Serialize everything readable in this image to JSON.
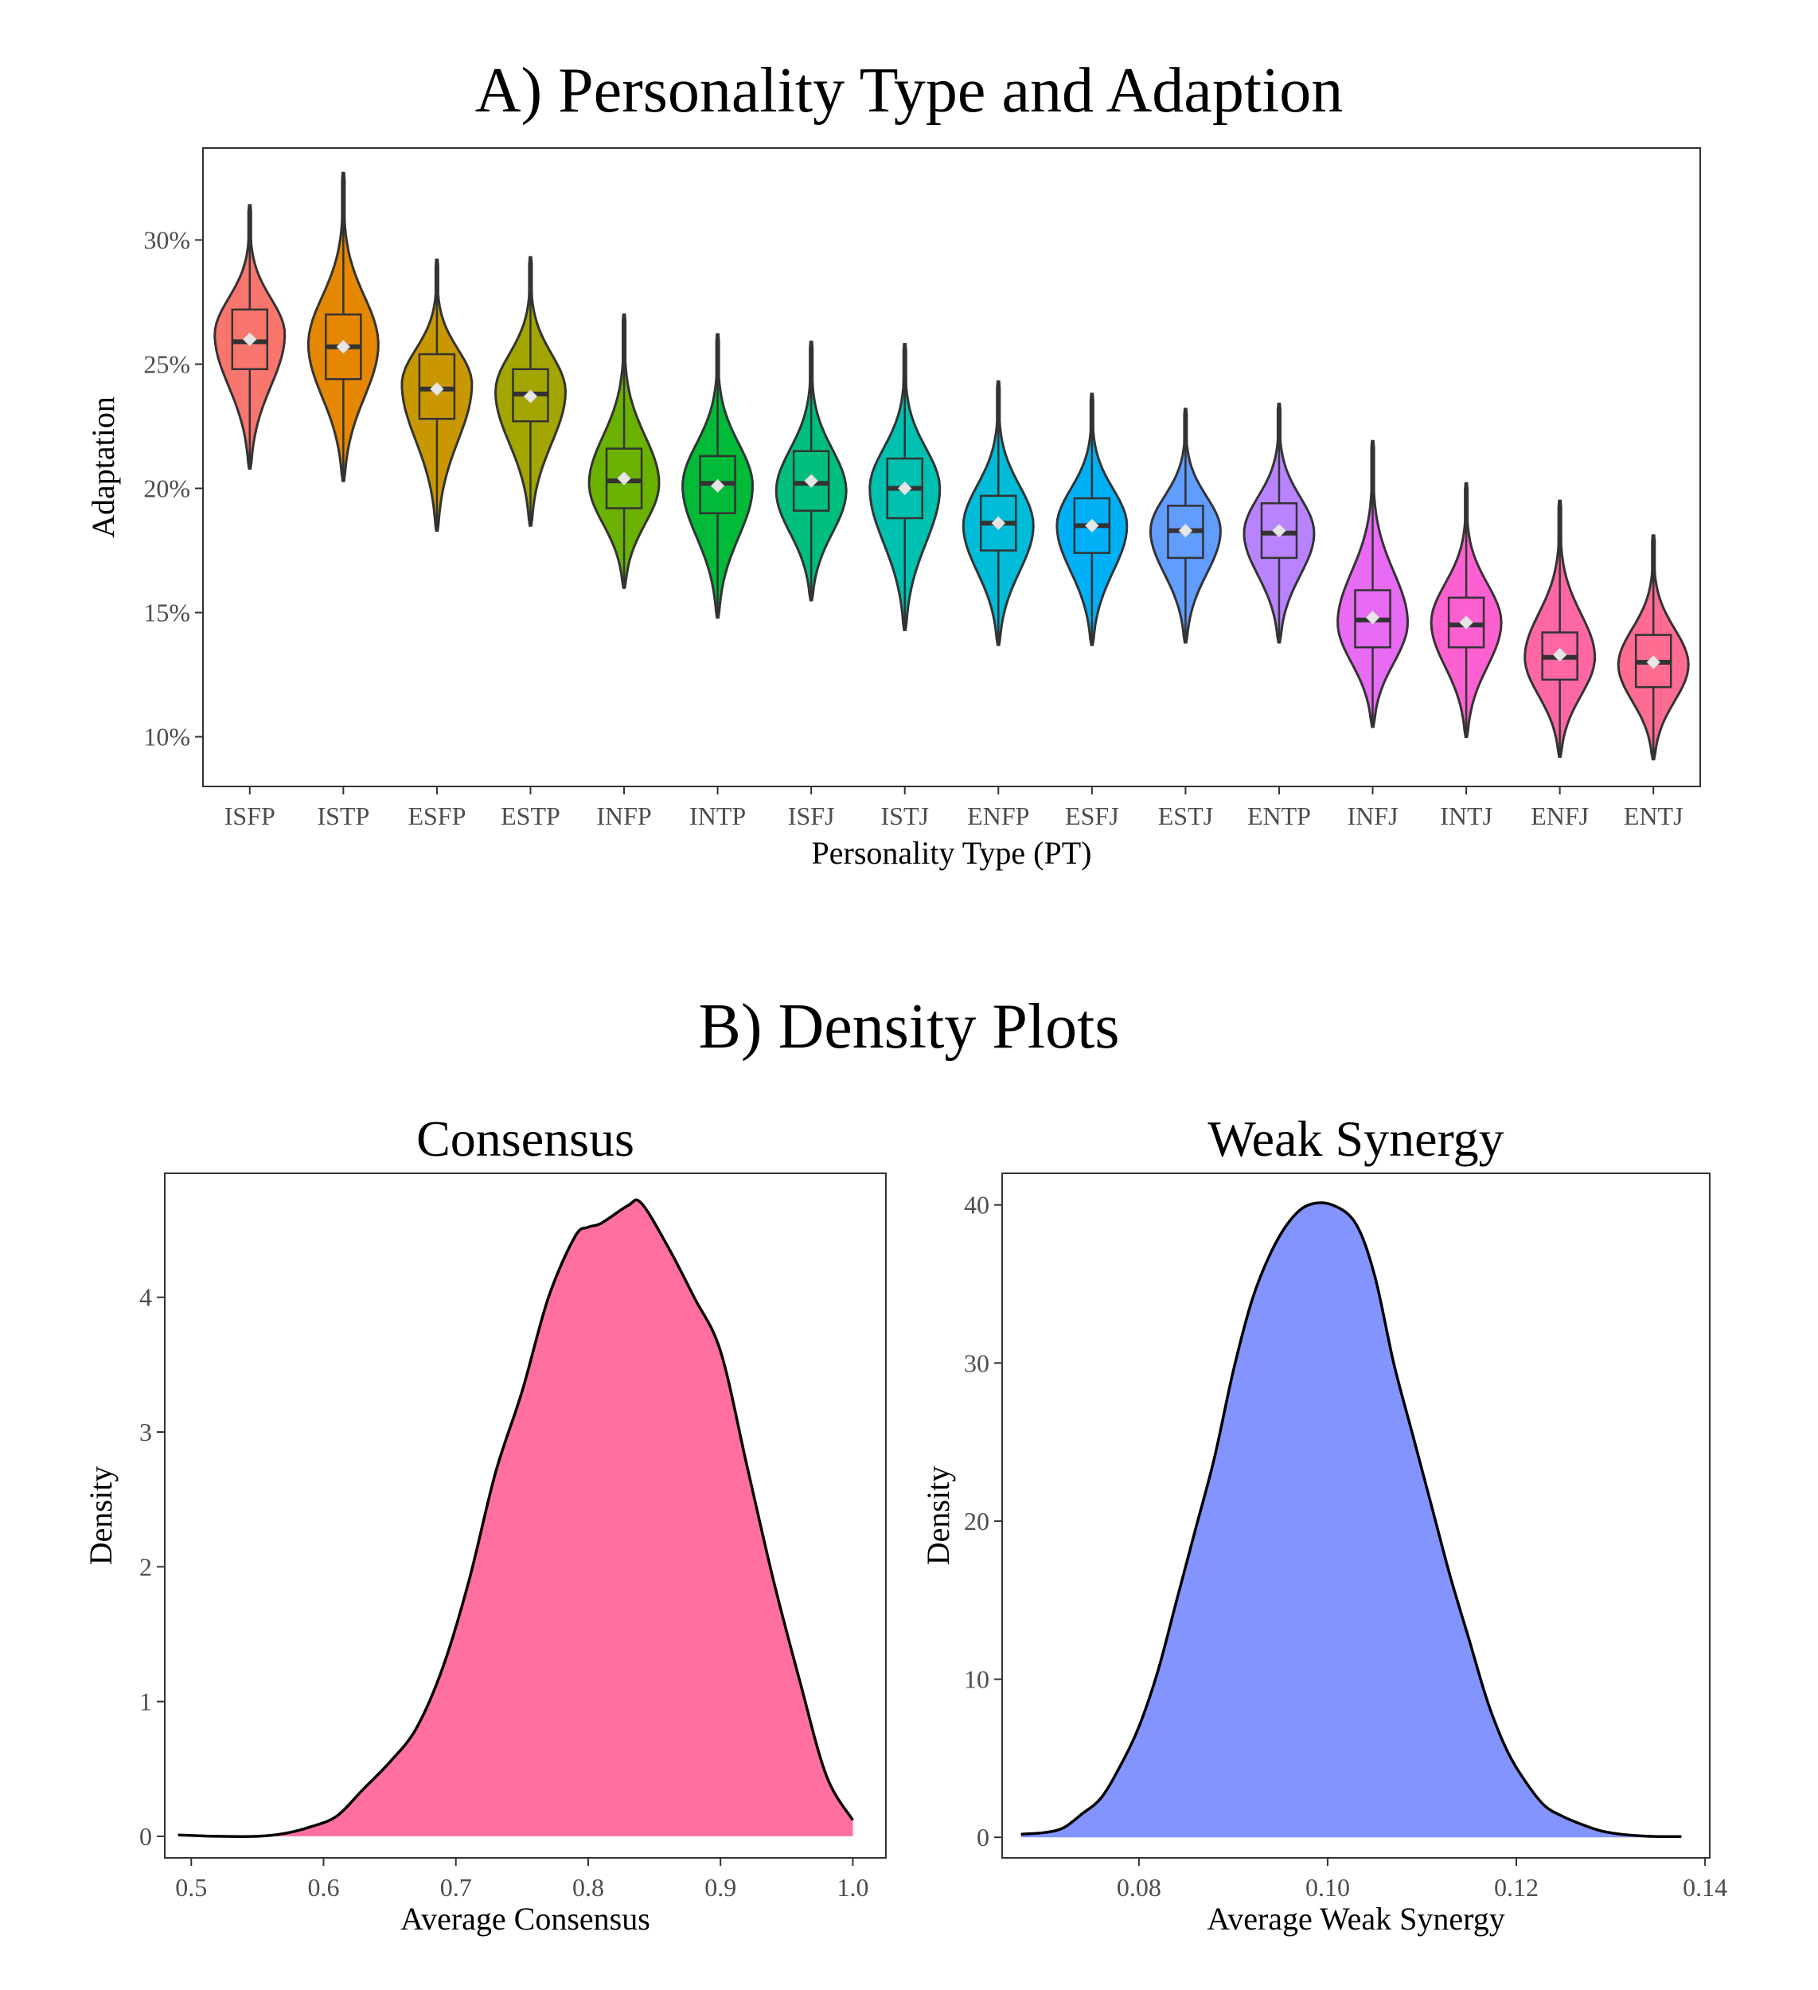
{
  "figure": {
    "panel_a_title": "A) Personality Type and Adaption",
    "panel_b_title": "B) Density Plots"
  },
  "chart_data": [
    {
      "type": "violin",
      "title": "A) Personality Type and Adaption",
      "xlabel": "Personality Type (PT)",
      "ylabel": "Adaptation",
      "ylim": [
        0.08,
        0.337
      ],
      "y_ticks": [
        0.1,
        0.15,
        0.2,
        0.25,
        0.3
      ],
      "y_tick_labels": [
        "10%",
        "15%",
        "20%",
        "25%",
        "30%"
      ],
      "grid": false,
      "legend": "none",
      "categories": [
        "ISFP",
        "ISTP",
        "ESFP",
        "ESTP",
        "INFP",
        "INTP",
        "ISFJ",
        "ISTJ",
        "ENFP",
        "ESFJ",
        "ESTJ",
        "ENTP",
        "INFJ",
        "INTJ",
        "ENFJ",
        "ENTJ"
      ],
      "colors": [
        "#F8766D",
        "#E58700",
        "#C99800",
        "#A3A500",
        "#6BB100",
        "#00BA38",
        "#00BF7D",
        "#00C0AF",
        "#00BCD8",
        "#00B0F6",
        "#619CFF",
        "#B983FF",
        "#E76BF3",
        "#FD61D1",
        "#FF67A4",
        "#FF6C91"
      ],
      "series": [
        {
          "name": "ISFP",
          "min": 0.208,
          "max": 0.314,
          "q1": 0.248,
          "median": 0.259,
          "q3": 0.272,
          "mean": 0.26,
          "mode": 0.262
        },
        {
          "name": "ISTP",
          "min": 0.203,
          "max": 0.327,
          "q1": 0.244,
          "median": 0.257,
          "q3": 0.27,
          "mean": 0.257,
          "mode": 0.258
        },
        {
          "name": "ESFP",
          "min": 0.183,
          "max": 0.292,
          "q1": 0.228,
          "median": 0.24,
          "q3": 0.254,
          "mean": 0.24,
          "mode": 0.242
        },
        {
          "name": "ESTP",
          "min": 0.185,
          "max": 0.293,
          "q1": 0.227,
          "median": 0.238,
          "q3": 0.248,
          "mean": 0.237,
          "mode": 0.239
        },
        {
          "name": "INFP",
          "min": 0.16,
          "max": 0.27,
          "q1": 0.192,
          "median": 0.203,
          "q3": 0.216,
          "mean": 0.204,
          "mode": 0.202
        },
        {
          "name": "INTP",
          "min": 0.148,
          "max": 0.262,
          "q1": 0.19,
          "median": 0.202,
          "q3": 0.213,
          "mean": 0.201,
          "mode": 0.201
        },
        {
          "name": "ISFJ",
          "min": 0.155,
          "max": 0.259,
          "q1": 0.191,
          "median": 0.202,
          "q3": 0.215,
          "mean": 0.203,
          "mode": 0.199
        },
        {
          "name": "ISTJ",
          "min": 0.143,
          "max": 0.258,
          "q1": 0.188,
          "median": 0.2,
          "q3": 0.212,
          "mean": 0.2,
          "mode": 0.2
        },
        {
          "name": "ENFP",
          "min": 0.137,
          "max": 0.243,
          "q1": 0.175,
          "median": 0.186,
          "q3": 0.197,
          "mean": 0.186,
          "mode": 0.185
        },
        {
          "name": "ESFJ",
          "min": 0.137,
          "max": 0.238,
          "q1": 0.174,
          "median": 0.185,
          "q3": 0.196,
          "mean": 0.185,
          "mode": 0.185
        },
        {
          "name": "ESTJ",
          "min": 0.138,
          "max": 0.232,
          "q1": 0.172,
          "median": 0.183,
          "q3": 0.193,
          "mean": 0.183,
          "mode": 0.183
        },
        {
          "name": "ENTP",
          "min": 0.138,
          "max": 0.234,
          "q1": 0.172,
          "median": 0.182,
          "q3": 0.194,
          "mean": 0.183,
          "mode": 0.182
        },
        {
          "name": "INFJ",
          "min": 0.104,
          "max": 0.219,
          "q1": 0.136,
          "median": 0.147,
          "q3": 0.159,
          "mean": 0.148,
          "mode": 0.146
        },
        {
          "name": "INTJ",
          "min": 0.1,
          "max": 0.202,
          "q1": 0.136,
          "median": 0.145,
          "q3": 0.156,
          "mean": 0.146,
          "mode": 0.146
        },
        {
          "name": "ENFJ",
          "min": 0.092,
          "max": 0.195,
          "q1": 0.123,
          "median": 0.132,
          "q3": 0.142,
          "mean": 0.133,
          "mode": 0.132
        },
        {
          "name": "ENTJ",
          "min": 0.091,
          "max": 0.181,
          "q1": 0.12,
          "median": 0.13,
          "q3": 0.141,
          "mean": 0.13,
          "mode": 0.129
        }
      ]
    },
    {
      "type": "area",
      "title": "Consensus",
      "xlabel": "Average Consensus",
      "ylabel": "Density",
      "xlim": [
        0.48,
        1.025
      ],
      "ylim": [
        -0.16,
        4.92
      ],
      "x_ticks": [
        0.5,
        0.6,
        0.7,
        0.8,
        0.9,
        1.0
      ],
      "x_tick_labels": [
        "0.5",
        "0.6",
        "0.7",
        "0.8",
        "0.9",
        "1.0"
      ],
      "y_ticks": [
        0,
        1,
        2,
        3,
        4
      ],
      "y_tick_labels": [
        "0",
        "1",
        "2",
        "3",
        "4"
      ],
      "fill": "#FF6FA0",
      "x": [
        0.49,
        0.52,
        0.55,
        0.57,
        0.59,
        0.61,
        0.63,
        0.65,
        0.67,
        0.69,
        0.71,
        0.73,
        0.75,
        0.77,
        0.79,
        0.8,
        0.81,
        0.83,
        0.84,
        0.86,
        0.88,
        0.9,
        0.92,
        0.94,
        0.96,
        0.98,
        1.0
      ],
      "values": [
        0.01,
        0.0,
        0.0,
        0.02,
        0.07,
        0.15,
        0.35,
        0.55,
        0.8,
        1.25,
        1.9,
        2.7,
        3.3,
        4.0,
        4.45,
        4.52,
        4.55,
        4.68,
        4.7,
        4.38,
        4.0,
        3.6,
        2.75,
        1.9,
        1.15,
        0.45,
        0.12
      ]
    },
    {
      "type": "area",
      "title": "Weak Synergy",
      "xlabel": "Average Weak Synergy",
      "ylabel": "Density",
      "xlim": [
        0.0655,
        0.1405
      ],
      "ylim": [
        -1.3,
        42.0
      ],
      "x_ticks": [
        0.08,
        0.1,
        0.12,
        0.14
      ],
      "x_tick_labels": [
        "0.08",
        "0.10",
        "0.12",
        "0.14"
      ],
      "y_ticks": [
        0,
        10,
        20,
        30,
        40
      ],
      "y_tick_labels": [
        "0",
        "10",
        "20",
        "30",
        "40"
      ],
      "fill": "#8494FF",
      "x": [
        0.0675,
        0.07,
        0.072,
        0.074,
        0.076,
        0.078,
        0.08,
        0.082,
        0.084,
        0.086,
        0.088,
        0.09,
        0.092,
        0.094,
        0.096,
        0.098,
        0.1005,
        0.103,
        0.105,
        0.107,
        0.109,
        0.111,
        0.113,
        0.115,
        0.117,
        0.119,
        0.121,
        0.123,
        0.125,
        0.127,
        0.129,
        0.131,
        0.133,
        0.135,
        0.1375
      ],
      "values": [
        0.2,
        0.3,
        0.6,
        1.5,
        2.5,
        4.5,
        7.0,
        10.5,
        15.0,
        19.5,
        24.0,
        29.5,
        34.0,
        37.0,
        39.0,
        40.0,
        40.0,
        38.8,
        35.5,
        30.0,
        25.5,
        21.0,
        16.5,
        12.5,
        8.5,
        5.5,
        3.5,
        2.0,
        1.3,
        0.8,
        0.4,
        0.2,
        0.1,
        0.05,
        0.05
      ]
    }
  ]
}
